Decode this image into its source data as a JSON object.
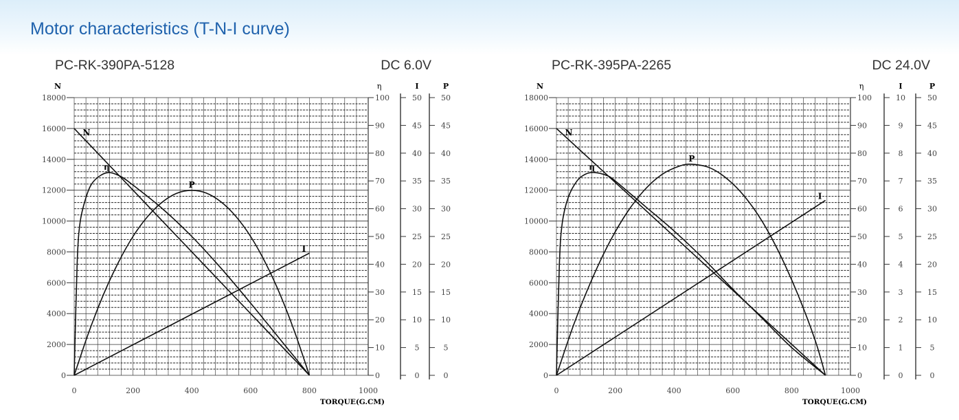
{
  "page": {
    "title": "Motor characteristics (T-N-I curve)",
    "accent_color": "#1f62ad"
  },
  "chart_data": [
    {
      "type": "line",
      "model": "PC-RK-390PA-5128",
      "voltage": "DC 6.0V",
      "xlabel": "TORQUE(G.CM)",
      "xlim": [
        0,
        1000
      ],
      "xticks": [
        "0",
        "200",
        "400",
        "600",
        "800",
        "1000"
      ],
      "grid": true,
      "axes": {
        "N": {
          "label": "N",
          "lim": [
            0,
            18000
          ],
          "ticks": [
            "0",
            "2000",
            "4000",
            "6000",
            "8000",
            "10000",
            "12000",
            "14000",
            "16000",
            "18000"
          ]
        },
        "eta": {
          "label": "η",
          "lim": [
            0,
            100
          ],
          "ticks": [
            "0",
            "10",
            "20",
            "30",
            "40",
            "50",
            "60",
            "70",
            "80",
            "90",
            "100"
          ]
        },
        "I": {
          "label": "I",
          "lim": [
            0,
            50
          ],
          "ticks": [
            "0",
            "5",
            "10",
            "15",
            "20",
            "25",
            "30",
            "35",
            "40",
            "45",
            "50"
          ]
        },
        "P": {
          "label": "P",
          "lim": [
            0,
            50
          ],
          "ticks": [
            "0",
            "5",
            "10",
            "15",
            "20",
            "25",
            "30",
            "35",
            "40",
            "45",
            "50"
          ]
        }
      },
      "series": [
        {
          "name": "N",
          "axis": "N",
          "points": [
            [
              0,
              16000
            ],
            [
              800,
              0
            ]
          ]
        },
        {
          "name": "η",
          "axis": "eta",
          "points": [
            [
              0,
              0
            ],
            [
              10,
              40
            ],
            [
              20,
              55
            ],
            [
              40,
              64
            ],
            [
              60,
              69
            ],
            [
              90,
              72
            ],
            [
              120,
              73
            ],
            [
              160,
              71.5
            ],
            [
              200,
              68.5
            ],
            [
              300,
              60
            ],
            [
              400,
              50
            ],
            [
              500,
              38.5
            ],
            [
              600,
              26
            ],
            [
              700,
              13
            ],
            [
              800,
              0
            ]
          ]
        },
        {
          "name": "P",
          "axis": "P",
          "points": [
            [
              0,
              0
            ],
            [
              50,
              7.8
            ],
            [
              100,
              14.6
            ],
            [
              150,
              20.3
            ],
            [
              200,
              25
            ],
            [
              250,
              28.6
            ],
            [
              300,
              31.2
            ],
            [
              350,
              32.8
            ],
            [
              400,
              33.3
            ],
            [
              450,
              32.8
            ],
            [
              500,
              31.2
            ],
            [
              550,
              28.6
            ],
            [
              600,
              25
            ],
            [
              650,
              20.3
            ],
            [
              700,
              14.6
            ],
            [
              750,
              7.8
            ],
            [
              800,
              0
            ]
          ]
        },
        {
          "name": "I",
          "axis": "I",
          "points": [
            [
              0,
              0
            ],
            [
              800,
              22
            ]
          ]
        }
      ]
    },
    {
      "type": "line",
      "model": "PC-RK-395PA-2265",
      "voltage": "DC 24.0V",
      "xlabel": "TORQUE(G.CM)",
      "xlim": [
        0,
        1000
      ],
      "xticks": [
        "0",
        "200",
        "400",
        "600",
        "800",
        "1000"
      ],
      "grid": true,
      "axes": {
        "N": {
          "label": "N",
          "lim": [
            0,
            18000
          ],
          "ticks": [
            "0",
            "2000",
            "4000",
            "6000",
            "8000",
            "10000",
            "12000",
            "14000",
            "16000",
            "18000"
          ]
        },
        "eta": {
          "label": "η",
          "lim": [
            0,
            100
          ],
          "ticks": [
            "0",
            "10",
            "20",
            "30",
            "40",
            "50",
            "60",
            "70",
            "80",
            "90",
            "100"
          ]
        },
        "I": {
          "label": "I",
          "lim": [
            0,
            10
          ],
          "ticks": [
            "0",
            "1",
            "2",
            "3",
            "4",
            "5",
            "6",
            "7",
            "8",
            "9",
            "10"
          ]
        },
        "P": {
          "label": "P",
          "lim": [
            0,
            50
          ],
          "ticks": [
            "0",
            "5",
            "10",
            "15",
            "20",
            "25",
            "30",
            "35",
            "40",
            "45",
            "50"
          ]
        }
      },
      "series": [
        {
          "name": "N",
          "axis": "N",
          "points": [
            [
              0,
              16000
            ],
            [
              915,
              0
            ]
          ]
        },
        {
          "name": "η",
          "axis": "eta",
          "points": [
            [
              0,
              0
            ],
            [
              10,
              40
            ],
            [
              20,
              55
            ],
            [
              40,
              64
            ],
            [
              70,
              70
            ],
            [
              100,
              72.5
            ],
            [
              130,
              73
            ],
            [
              170,
              72
            ],
            [
              200,
              70
            ],
            [
              300,
              61
            ],
            [
              400,
              52
            ],
            [
              500,
              42
            ],
            [
              600,
              31
            ],
            [
              700,
              20.5
            ],
            [
              800,
              10
            ],
            [
              915,
              0
            ]
          ]
        },
        {
          "name": "P",
          "axis": "P",
          "points": [
            [
              0,
              0
            ],
            [
              60,
              9.3
            ],
            [
              120,
              17.2
            ],
            [
              180,
              23.9
            ],
            [
              240,
              29.3
            ],
            [
              300,
              33.4
            ],
            [
              360,
              36.2
            ],
            [
              420,
              37.7
            ],
            [
              460,
              38
            ],
            [
              520,
              37.4
            ],
            [
              580,
              35.4
            ],
            [
              640,
              32.2
            ],
            [
              700,
              27.7
            ],
            [
              760,
              21.8
            ],
            [
              820,
              14.7
            ],
            [
              880,
              6.3
            ],
            [
              915,
              0
            ]
          ]
        },
        {
          "name": "I",
          "axis": "I",
          "points": [
            [
              0,
              0
            ],
            [
              915,
              6.3
            ]
          ]
        }
      ]
    }
  ]
}
